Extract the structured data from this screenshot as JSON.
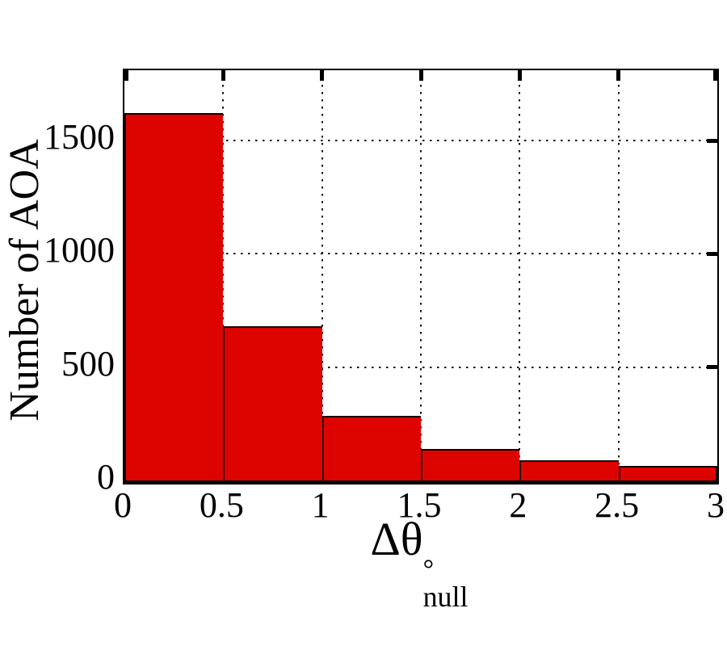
{
  "chart_data": {
    "type": "bar",
    "subtype": "histogram",
    "title": "",
    "xlabel_plain": "Δθ°_null",
    "xlabel_parts": {
      "base": "Δθ",
      "superscript": "°",
      "subscript": "null"
    },
    "ylabel": "Number of AOA",
    "bin_edges": [
      0,
      0.5,
      1,
      1.5,
      2,
      2.5,
      3
    ],
    "values": [
      1620,
      680,
      285,
      140,
      90,
      65
    ],
    "categories": [
      "0-0.5",
      "0.5-1",
      "1-1.5",
      "1.5-2",
      "2-2.5",
      "2.5-3"
    ],
    "xtick_labels": [
      "0",
      "0.5",
      "1",
      "1.5",
      "2",
      "2.5",
      "3"
    ],
    "xtick_values": [
      0,
      0.5,
      1,
      1.5,
      2,
      2.5,
      3
    ],
    "ytick_labels": [
      "0",
      "500",
      "1000",
      "1500"
    ],
    "ytick_values": [
      0,
      500,
      1000,
      1500
    ],
    "xlim": [
      0,
      3
    ],
    "ylim": [
      0,
      1810
    ],
    "grid": "dotted",
    "legend": "none",
    "colors": {
      "bar_fill": "#dd0400",
      "bar_edge": "#1a0000",
      "axis": "#000000",
      "grid": "#111111",
      "background": "#ffffff"
    }
  }
}
